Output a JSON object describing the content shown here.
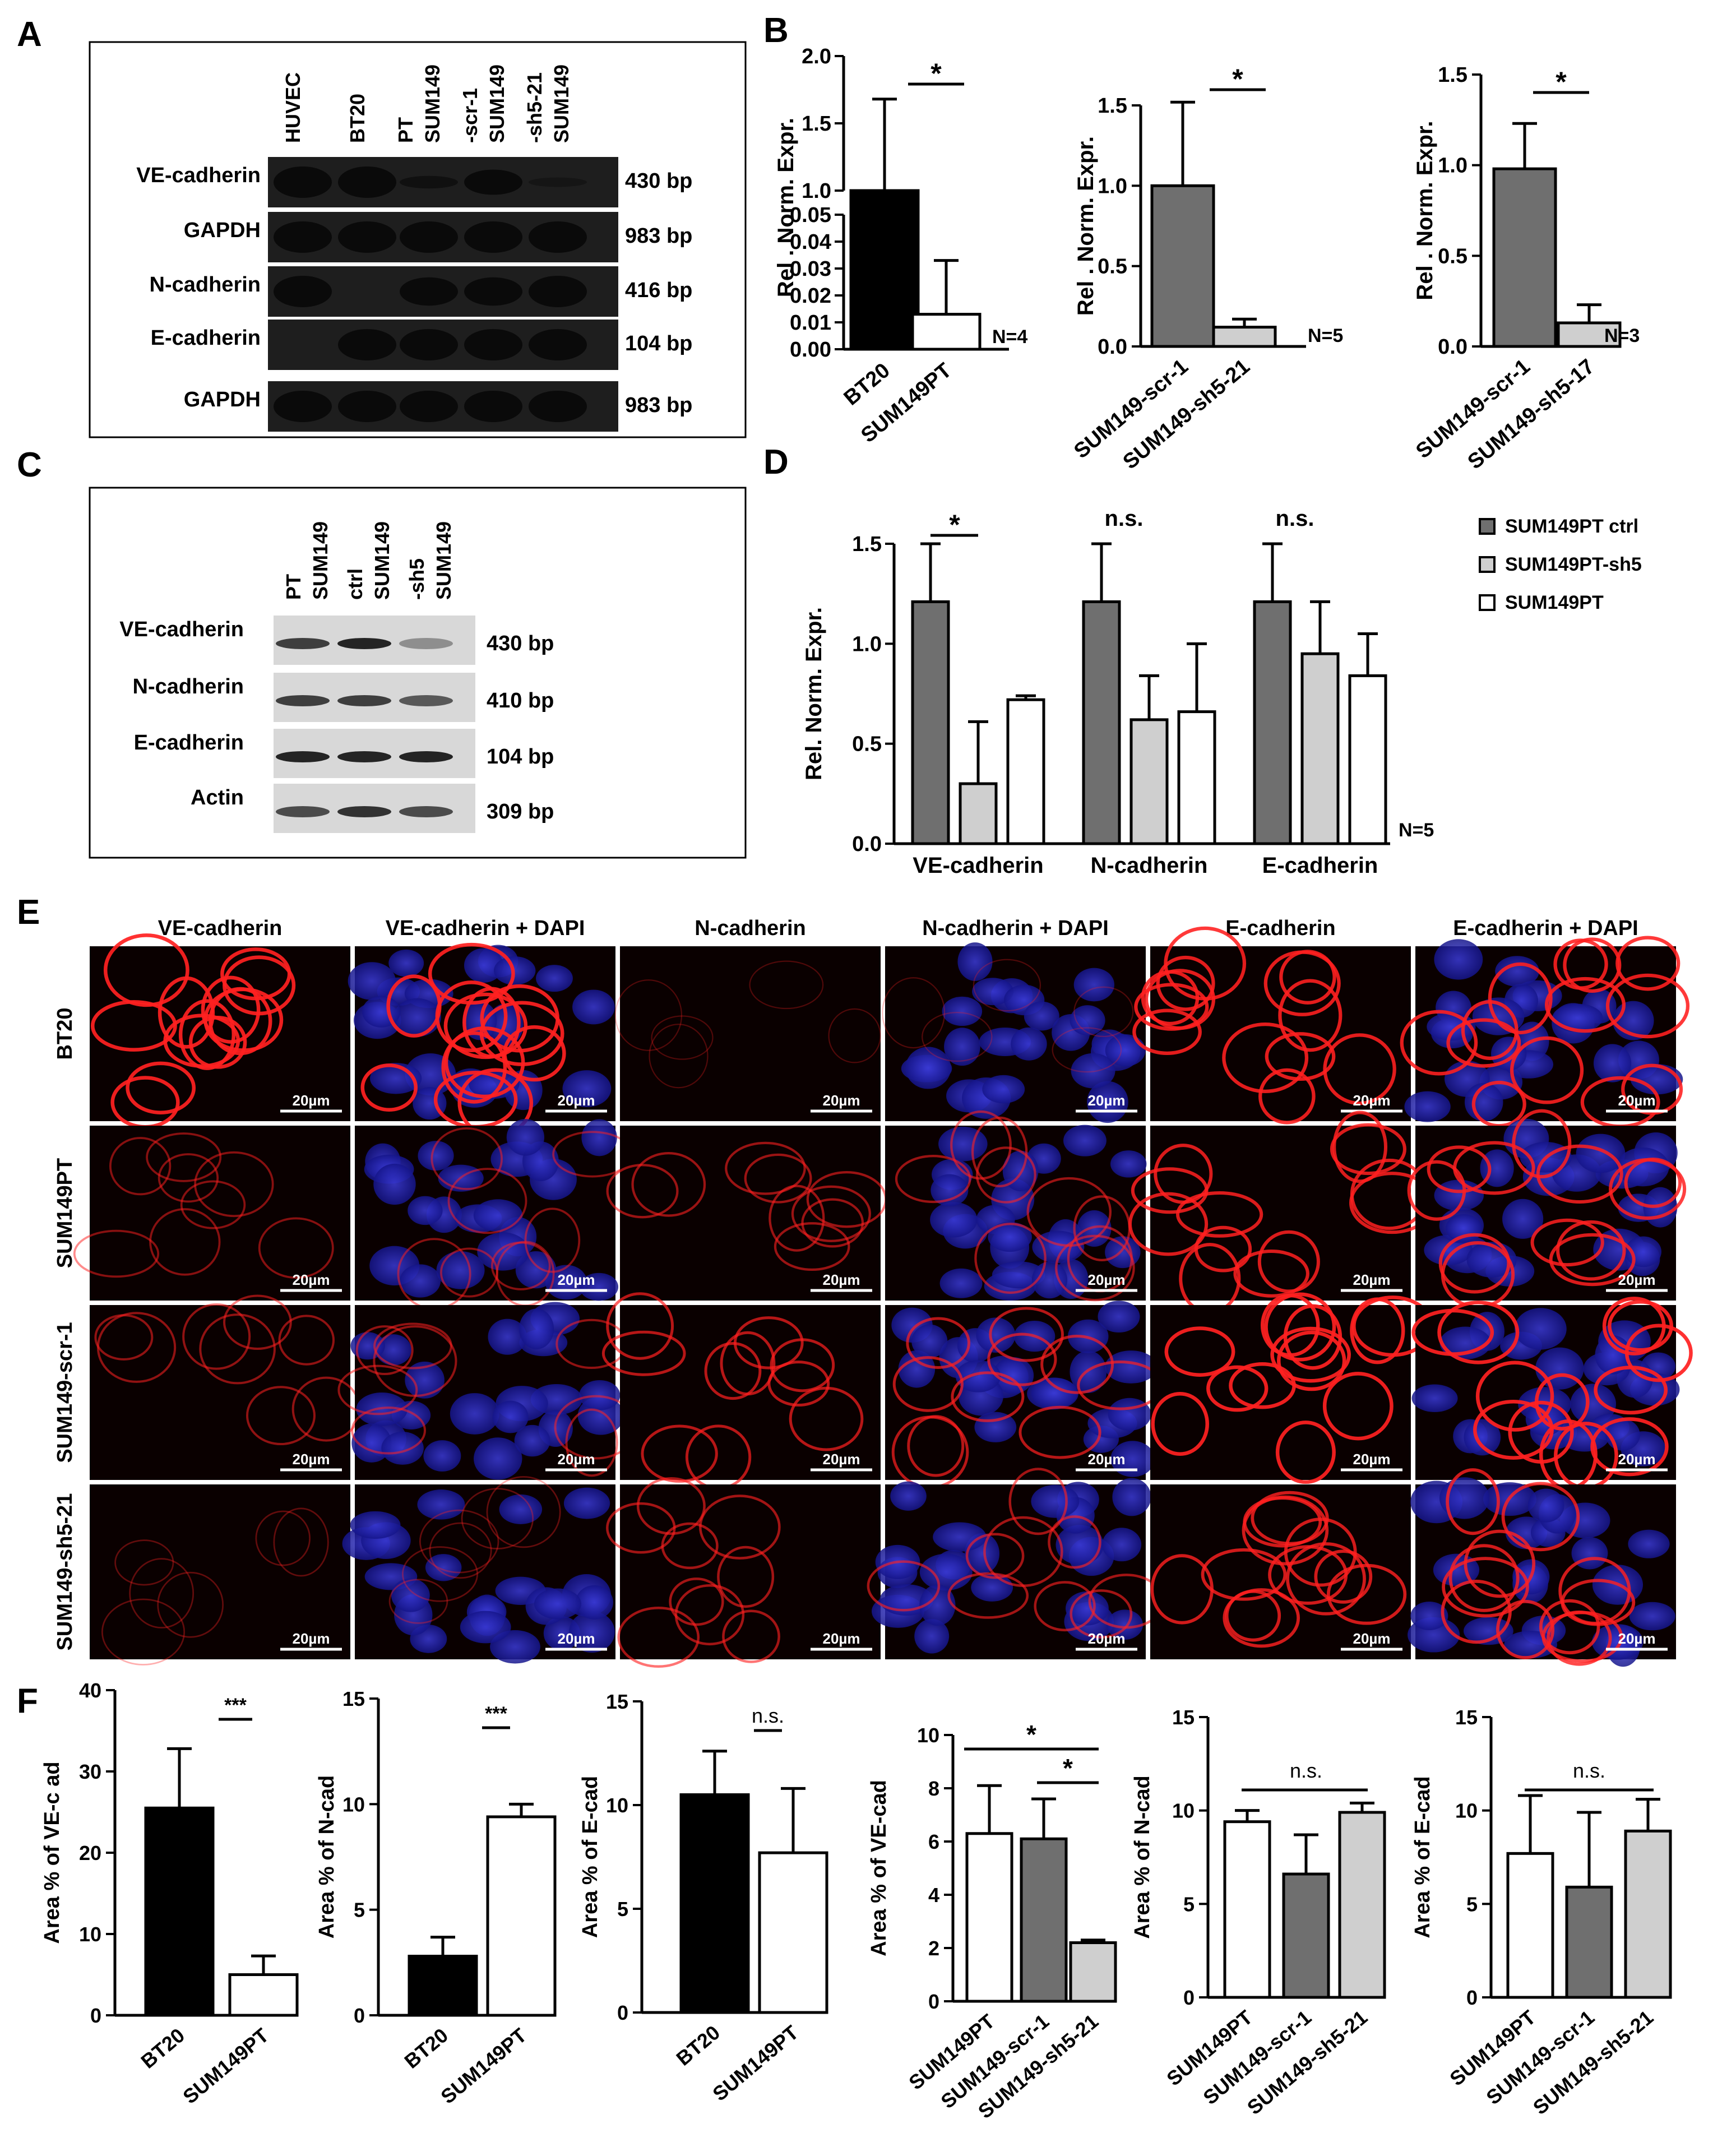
{
  "colors": {
    "black": "#000000",
    "dark_grey": "#6f6f6f",
    "light_grey": "#cfcfcf",
    "white": "#ffffff",
    "gel_bg": "#1e1e1e",
    "gel_band": "#c9c9c9",
    "img_bg": "#0a0000",
    "vec_red": "#ff2020",
    "dapi_blue": "#2a2ac0"
  },
  "panel_letters": {
    "A": "A",
    "B": "B",
    "C": "C",
    "D": "D",
    "E": "E",
    "F": "F"
  },
  "panelA": {
    "lanes": [
      "HUVEC",
      "BT20",
      "SUM149 PT",
      "SUM149 -scr-1",
      "SUM149 -sh5-21"
    ],
    "rows": [
      {
        "label": "VE-cadherin",
        "size": "430 bp",
        "bands": [
          1,
          1,
          0.4,
          0.8,
          0.15
        ]
      },
      {
        "label": "GAPDH",
        "size": "983 bp",
        "bands": [
          1,
          1,
          1,
          1,
          1
        ]
      },
      {
        "label": "N-cadherin",
        "size": "416 bp",
        "bands": [
          1,
          0,
          0.9,
          0.9,
          1
        ]
      },
      {
        "label": "E-cadherin",
        "size": "104 bp",
        "bands": [
          0,
          1,
          1,
          1,
          1
        ]
      },
      {
        "label": "GAPDH",
        "size": "983 bp",
        "bands": [
          1,
          1,
          1,
          1,
          1
        ]
      }
    ]
  },
  "panelC": {
    "lanes": [
      "SUM149 PT",
      "SUM149 ctrl",
      "SUM149 -sh5"
    ],
    "rows": [
      {
        "label": "VE-cadherin",
        "size": "430 bp",
        "bands": [
          0.8,
          1,
          0.2
        ]
      },
      {
        "label": "N-cadherin",
        "size": "410 bp",
        "bands": [
          0.8,
          0.8,
          0.6
        ]
      },
      {
        "label": "E-cadherin",
        "size": "104 bp",
        "bands": [
          1,
          1,
          1
        ]
      },
      {
        "label": "Actin",
        "size": "309 bp",
        "bands": [
          0.7,
          0.9,
          0.7
        ]
      }
    ]
  },
  "chart_data": [
    {
      "panel": "B1",
      "type": "bar",
      "categories": [
        "BT20",
        "SUM149PT"
      ],
      "values": [
        1.0,
        0.013
      ],
      "errors": [
        0.68,
        0.02
      ],
      "fills": [
        "black",
        "white"
      ],
      "ylabel": "Rel . Norm. Expr.",
      "broken_axis": true,
      "ticks_lower": [
        "0.00",
        "0.01",
        "0.02",
        "0.03",
        "0.04",
        "0.05"
      ],
      "ticks_upper": [
        "1.0",
        "1.5",
        "2.0"
      ],
      "sig": "*",
      "n": "N=4"
    },
    {
      "panel": "B2",
      "type": "bar",
      "categories": [
        "SUM149-scr-1",
        "SUM149-sh5-21"
      ],
      "values": [
        1.0,
        0.12
      ],
      "errors": [
        0.52,
        0.05
      ],
      "fills": [
        "dark_grey",
        "light_grey"
      ],
      "ylabel": "Rel . Norm. Expr.",
      "ylim": [
        0,
        1.5
      ],
      "ticks": [
        "0.0",
        "0.5",
        "1.0",
        "1.5"
      ],
      "sig": "*",
      "n": "N=5"
    },
    {
      "panel": "B3",
      "type": "bar",
      "categories": [
        "SUM149-scr-1",
        "SUM149-sh5-17"
      ],
      "values": [
        0.98,
        0.13
      ],
      "errors": [
        0.25,
        0.1
      ],
      "fills": [
        "dark_grey",
        "light_grey"
      ],
      "ylabel": "Rel . Norm. Expr.",
      "ylim": [
        0,
        1.5
      ],
      "ticks": [
        "0.0",
        "0.5",
        "1.0",
        "1.5"
      ],
      "sig": "*",
      "n": "N=3"
    },
    {
      "panel": "D",
      "type": "bar",
      "categories": [
        "VE-cadherin",
        "N-cadherin",
        "E-cadherin"
      ],
      "series": [
        {
          "name": "SUM149PT ctrl",
          "values": [
            1.21,
            1.21,
            1.21
          ],
          "errors": [
            0.29,
            0.29,
            0.29
          ],
          "fill": "dark_grey"
        },
        {
          "name": "SUM149PT-sh5",
          "values": [
            0.3,
            0.62,
            0.95
          ],
          "errors": [
            0.31,
            0.22,
            0.26
          ],
          "fill": "light_grey"
        },
        {
          "name": "SUM149PT",
          "values": [
            0.72,
            0.66,
            0.84
          ],
          "errors": [
            0.02,
            0.34,
            0.21
          ],
          "fill": "white"
        }
      ],
      "ylabel": "Rel. Norm. Expr.",
      "ylim": [
        0,
        1.5
      ],
      "ticks": [
        "0.0",
        "0.5",
        "1.0",
        "1.5"
      ],
      "sig": [
        "*",
        "n.s.",
        "n.s."
      ],
      "n": "N=5"
    },
    {
      "panel": "F1",
      "type": "bar",
      "categories": [
        "BT20",
        "SUM149PT"
      ],
      "values": [
        25.5,
        5.0
      ],
      "errors": [
        7.3,
        2.3
      ],
      "fills": [
        "black",
        "white"
      ],
      "ylabel": "Area % of VE-c ad",
      "ylim": [
        0,
        40
      ],
      "ticks": [
        "0",
        "10",
        "20",
        "30",
        "40"
      ],
      "sig": "***"
    },
    {
      "panel": "F2",
      "type": "bar",
      "categories": [
        "BT20",
        "SUM149PT"
      ],
      "values": [
        2.8,
        9.4
      ],
      "errors": [
        0.9,
        0.6
      ],
      "fills": [
        "black",
        "white"
      ],
      "ylabel": "Area % of N-cad",
      "ylim": [
        0,
        15
      ],
      "ticks": [
        "0",
        "5",
        "10",
        "15"
      ],
      "sig": "***"
    },
    {
      "panel": "F3",
      "type": "bar",
      "categories": [
        "BT20",
        "SUM149PT"
      ],
      "values": [
        10.5,
        7.7
      ],
      "errors": [
        2.1,
        3.1
      ],
      "fills": [
        "black",
        "white"
      ],
      "ylabel": "Area % of E-cad",
      "ylim": [
        0,
        15
      ],
      "ticks": [
        "0",
        "5",
        "10",
        "15"
      ],
      "sig": "n.s."
    },
    {
      "panel": "F4",
      "type": "bar",
      "categories": [
        "SUM149PT",
        "SUM149-scr-1",
        "SUM149-sh5-21"
      ],
      "values": [
        6.3,
        6.1,
        2.2
      ],
      "errors": [
        1.8,
        1.5,
        0.1
      ],
      "fills": [
        "white",
        "dark_grey",
        "light_grey"
      ],
      "ylabel": "Area % of VE-cad",
      "ylim": [
        0,
        10
      ],
      "ticks": [
        "0",
        "2",
        "4",
        "6",
        "8",
        "10"
      ],
      "sig": [
        "*",
        "*"
      ]
    },
    {
      "panel": "F5",
      "type": "bar",
      "categories": [
        "SUM149PT",
        "SUM149-scr-1",
        "SUM149-sh5-21"
      ],
      "values": [
        9.4,
        6.6,
        9.9
      ],
      "errors": [
        0.6,
        2.1,
        0.5
      ],
      "fills": [
        "white",
        "dark_grey",
        "light_grey"
      ],
      "ylabel": "Area % of N-cad",
      "ylim": [
        0,
        15
      ],
      "ticks": [
        "0",
        "5",
        "10",
        "15"
      ],
      "sig": "n.s."
    },
    {
      "panel": "F6",
      "type": "bar",
      "categories": [
        "SUM149PT",
        "SUM149-scr-1",
        "SUM149-sh5-21"
      ],
      "values": [
        7.7,
        5.9,
        8.9
      ],
      "errors": [
        3.1,
        4.0,
        1.7
      ],
      "fills": [
        "white",
        "dark_grey",
        "light_grey"
      ],
      "ylabel": "Area % of E-cad",
      "ylim": [
        0,
        15
      ],
      "ticks": [
        "0",
        "5",
        "10",
        "15"
      ],
      "sig": "n.s."
    }
  ],
  "panelE": {
    "columns": [
      "VE-cadherin",
      "VE-cadherin + DAPI",
      "N-cadherin",
      "N-cadherin + DAPI",
      "E-cadherin",
      "E-cadherin + DAPI"
    ],
    "rows": [
      "BT20",
      "SUM149PT",
      "SUM149-scr-1",
      "SUM149-sh5-21"
    ],
    "scale_bar": "20µm",
    "red_intensity": [
      [
        0.9,
        0.9,
        0.05,
        0.05,
        0.85,
        0.85
      ],
      [
        0.35,
        0.35,
        0.45,
        0.45,
        0.8,
        0.8
      ],
      [
        0.4,
        0.4,
        0.6,
        0.6,
        0.9,
        0.9
      ],
      [
        0.15,
        0.15,
        0.5,
        0.5,
        0.75,
        0.75
      ]
    ],
    "dapi": [
      false,
      true,
      false,
      true,
      false,
      true
    ]
  }
}
